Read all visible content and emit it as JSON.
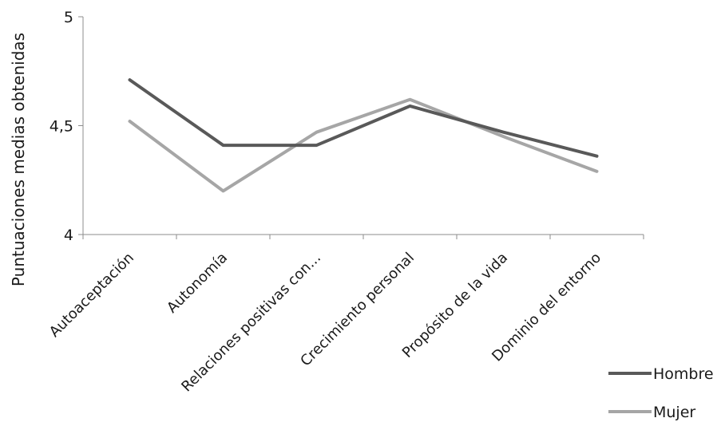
{
  "chart_data": {
    "type": "line",
    "title": "",
    "xlabel": "",
    "ylabel": "Puntuaciones medias obtenidas",
    "ylim": [
      4,
      5
    ],
    "yticks": [
      4,
      4.5,
      5
    ],
    "ytick_labels": [
      "4",
      "4,5",
      "5"
    ],
    "categories": [
      "Autoaceptación",
      "Autonomía",
      "Relaciones positivas con...",
      "Crecimiento personal",
      "Propósito de la vida",
      "Dominio del entorno"
    ],
    "series": [
      {
        "name": "Hombre",
        "color": "#595959",
        "values": [
          4.71,
          4.41,
          4.41,
          4.59,
          4.47,
          4.36
        ]
      },
      {
        "name": "Mujer",
        "color": "#a6a6a6",
        "values": [
          4.52,
          4.2,
          4.47,
          4.62,
          4.45,
          4.29
        ]
      }
    ],
    "grid": false,
    "legend_position": "bottom-right"
  }
}
